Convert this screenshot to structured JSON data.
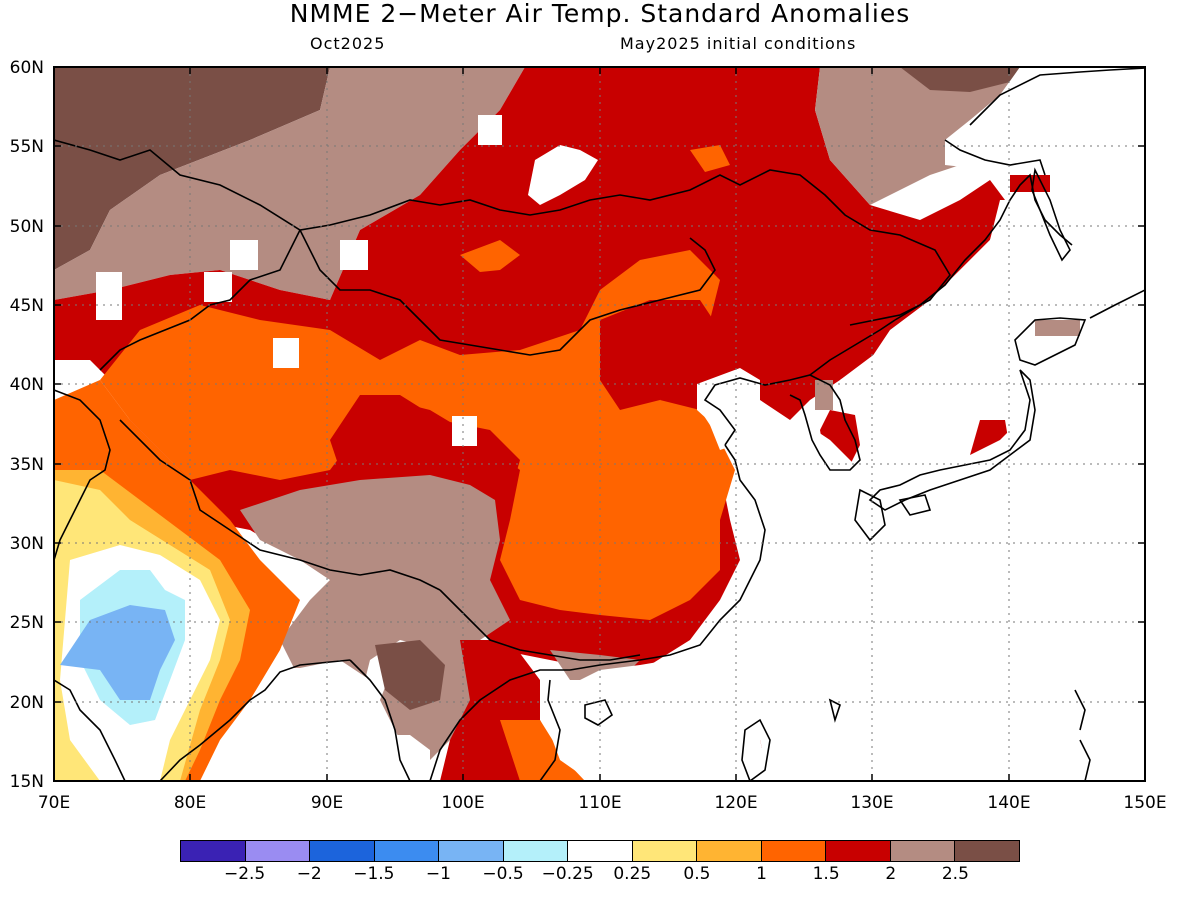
{
  "title": "NMME 2−Meter Air Temp. Standard Anomalies",
  "subtitle_left": "Oct2025",
  "subtitle_right": "May2025 initial conditions",
  "map": {
    "lon_range": [
      70,
      150
    ],
    "lat_range": [
      15,
      60
    ],
    "lon_ticks": [
      "70E",
      "80E",
      "90E",
      "100E",
      "110E",
      "120E",
      "130E",
      "140E",
      "150E"
    ],
    "lat_ticks": [
      "60N",
      "55N",
      "50N",
      "45N",
      "40N",
      "35N",
      "30N",
      "25N",
      "20N",
      "15N"
    ],
    "grid": "dotted"
  },
  "colorbar": {
    "colors": [
      "#3a22b4",
      "#9a8cf2",
      "#1c64dc",
      "#3c8cf0",
      "#78b4f4",
      "#b4f0fa",
      "#ffffff",
      "#ffe678",
      "#ffb432",
      "#ff6400",
      "#c80000",
      "#b48c82",
      "#7a4f46"
    ],
    "labels": [
      "−2.5",
      "−2",
      "−1.5",
      "−1",
      "−0.5",
      "−0.25",
      "0.25",
      "0.5",
      "1",
      "1.5",
      "2",
      "2.5"
    ]
  }
}
